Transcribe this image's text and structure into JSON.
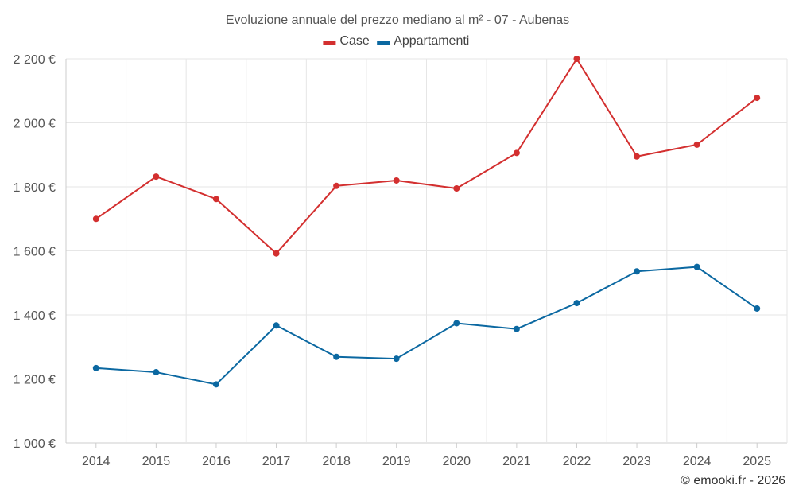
{
  "chart_data": {
    "type": "line",
    "title": "Evoluzione annuale del prezzo mediano al m² - 07 - Aubenas",
    "x": [
      "2014",
      "2015",
      "2016",
      "2017",
      "2018",
      "2019",
      "2020",
      "2021",
      "2022",
      "2023",
      "2024",
      "2025"
    ],
    "series": [
      {
        "name": "Case",
        "color": "#d32f2f",
        "values": [
          1700,
          1832,
          1762,
          1592,
          1803,
          1820,
          1795,
          1906,
          2200,
          1895,
          1932,
          2078
        ]
      },
      {
        "name": "Appartamenti",
        "color": "#0b68a1",
        "values": [
          1234,
          1221,
          1183,
          1367,
          1269,
          1263,
          1374,
          1356,
          1437,
          1536,
          1550,
          1420
        ]
      }
    ],
    "ylim": [
      1000,
      2200
    ],
    "y_ticks": [
      1000,
      1200,
      1400,
      1600,
      1800,
      2000,
      2200
    ],
    "y_tick_labels": [
      "1 000 €",
      "1 200 €",
      "1 400 €",
      "1 600 €",
      "1 800 €",
      "2 000 €",
      "2 200 €"
    ],
    "xlabel": "",
    "ylabel": "",
    "grid": true,
    "legend_position": "top-center"
  },
  "credit": "© emooki.fr - 2026"
}
